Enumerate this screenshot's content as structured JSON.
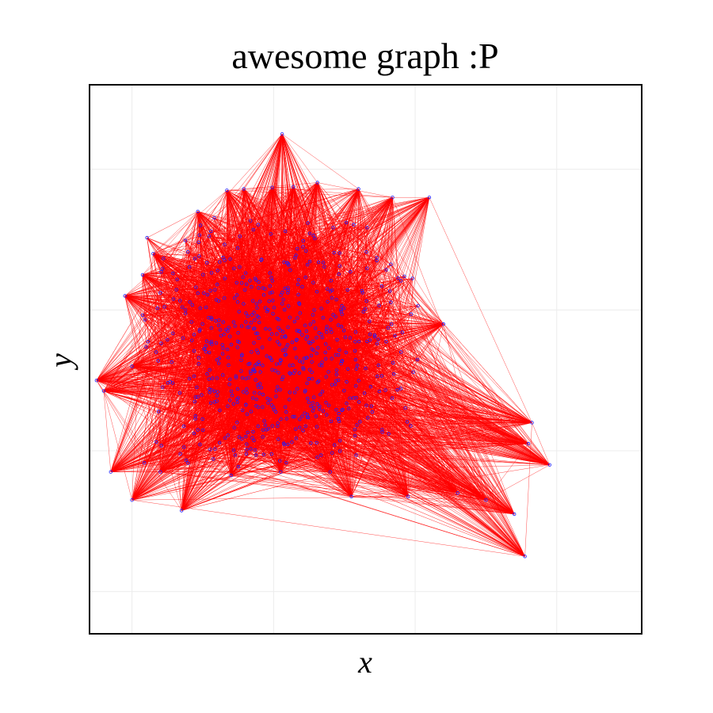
{
  "chart_data": {
    "type": "scatter",
    "title": "awesome graph :P",
    "xlabel": "x",
    "ylabel": "y",
    "xlim": [
      -2.6,
      5.2
    ],
    "ylim": [
      -2.6,
      5.2
    ],
    "grid": true,
    "ticks_labeled": false,
    "edge_color": "#ff0000",
    "node_color": "#1f1fff",
    "background": "#ffffff",
    "series": [
      {
        "nodes": [
          [
            0.12,
            4.5
          ],
          [
            -0.66,
            3.7
          ],
          [
            -0.42,
            3.72
          ],
          [
            -0.02,
            3.74
          ],
          [
            0.28,
            3.75
          ],
          [
            0.62,
            3.81
          ],
          [
            1.2,
            3.72
          ],
          [
            1.68,
            3.6
          ],
          [
            2.2,
            3.6
          ],
          [
            -1.07,
            3.4
          ],
          [
            -1.7,
            2.8
          ],
          [
            -1.85,
            2.5
          ],
          [
            -2.1,
            2.2
          ],
          [
            2.4,
            1.8
          ],
          [
            -2.5,
            1.0
          ],
          [
            -2.4,
            0.85
          ],
          [
            -2.0,
            1.2
          ],
          [
            -2.3,
            -0.3
          ],
          [
            -2.0,
            -0.7
          ],
          [
            -1.6,
            -0.3
          ],
          [
            -1.3,
            -0.85
          ],
          [
            -0.6,
            -0.35
          ],
          [
            0.1,
            -0.3
          ],
          [
            0.8,
            -0.3
          ],
          [
            1.1,
            -0.65
          ],
          [
            1.9,
            -0.65
          ],
          [
            2.6,
            -0.6
          ],
          [
            3.0,
            -0.7
          ],
          [
            3.4,
            -0.9
          ],
          [
            3.55,
            -1.5
          ],
          [
            3.6,
            0.1
          ],
          [
            3.65,
            0.4
          ],
          [
            3.9,
            -0.2
          ]
        ]
      }
    ]
  }
}
